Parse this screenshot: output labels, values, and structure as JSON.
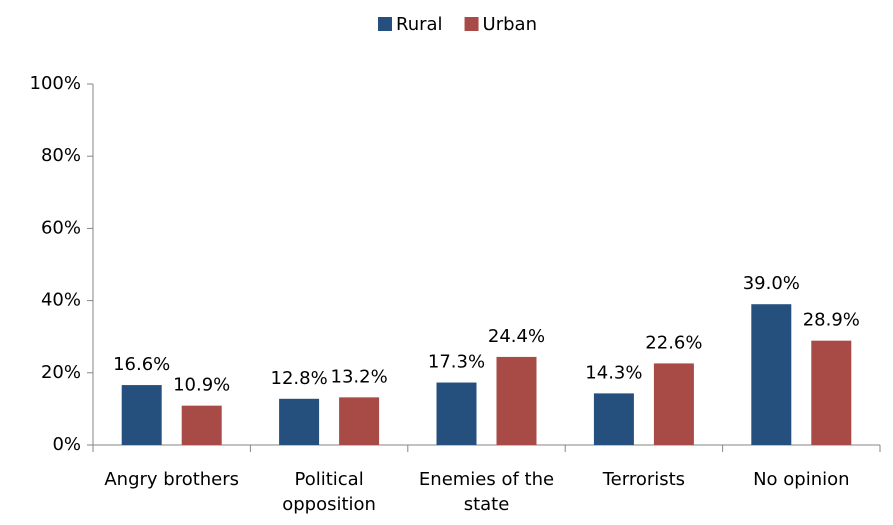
{
  "chart_data": {
    "type": "bar",
    "categories": [
      "Angry brothers",
      "Political opposition",
      "Enemies of the state",
      "Terrorists",
      "No opinion"
    ],
    "series": [
      {
        "name": "Rural",
        "color": "#254f7d",
        "values": [
          16.6,
          12.8,
          17.3,
          14.3,
          39.0
        ],
        "value_labels": [
          "16.6%",
          "12.8%",
          "17.3%",
          "14.3%",
          "39.0%"
        ]
      },
      {
        "name": "Urban",
        "color": "#a84a45",
        "values": [
          10.9,
          13.2,
          24.4,
          22.6,
          28.9
        ],
        "value_labels": [
          "10.9%",
          "13.2%",
          "24.4%",
          "22.6%",
          "28.9%"
        ]
      }
    ],
    "ylim": [
      0,
      100
    ],
    "yticks": [
      {
        "value": 0,
        "label": "0%"
      },
      {
        "value": 20,
        "label": "20%"
      },
      {
        "value": 40,
        "label": "40%"
      },
      {
        "value": 60,
        "label": "60%"
      },
      {
        "value": 80,
        "label": "80%"
      },
      {
        "value": 100,
        "label": "100%"
      }
    ],
    "legend": "top"
  }
}
